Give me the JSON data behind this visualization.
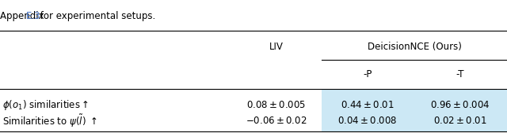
{
  "title_text": "Appendix E.3 for experimental setups.",
  "title_link": "E.3",
  "row1_label": "$\\phi(o_1)$ similarities$\\uparrow$",
  "row1_liv": "$0.08 \\pm 0.005$",
  "row1_p": "$0.44 \\pm 0.01$",
  "row1_t": "$0.96 \\pm 0.004$",
  "row2_label": "Similarities to $\\psi(\\tilde{l})$ $\\uparrow$",
  "row2_liv": "$-0.06 \\pm 0.02$",
  "row2_p": "$0.04 \\pm 0.008$",
  "row2_t": "$0.02 \\pm 0.01$",
  "header1_liv": "LIV",
  "header1_dec": "DeicisionNCE (Ours)",
  "header2_p": "-P",
  "header2_t": "-T",
  "highlight_color": "#cce8f5",
  "bg_color": "#ffffff",
  "text_color": "#000000",
  "link_color": "#4472c4",
  "col_bounds": [
    0.0,
    0.455,
    0.635,
    0.815,
    1.0
  ],
  "figsize": [
    6.4,
    1.69
  ],
  "dpi": 100,
  "fs": 8.5
}
